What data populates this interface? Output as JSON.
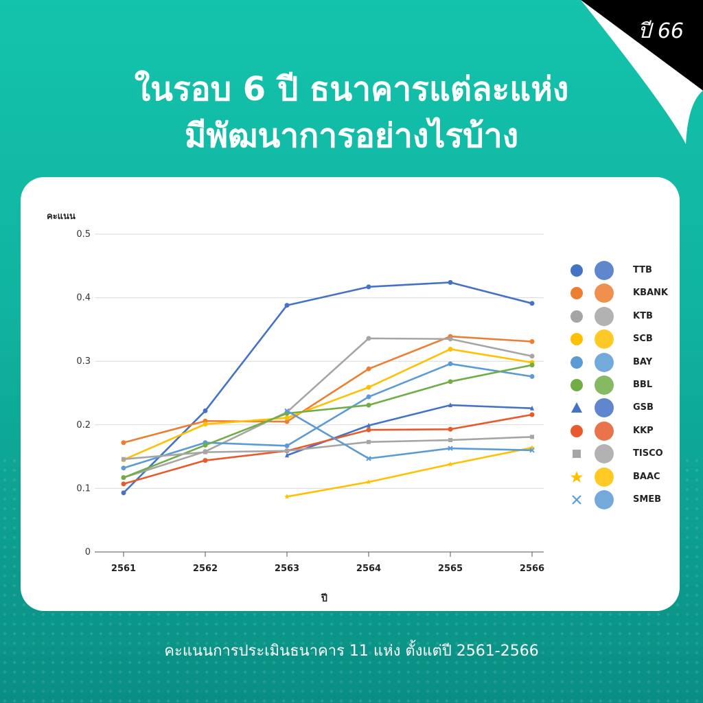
{
  "header": {
    "year_badge": "ปี 66",
    "title_line1": "ในรอบ 6 ปี ธนาคารแต่ละแห่ง",
    "title_line2": "มีพัฒนาการอย่างไรบ้าง"
  },
  "caption": "คะแนนการประเมินธนาคาร 11 แห่ง ตั้งแต่ปี 2561-2566",
  "colors": {
    "background": "#12bfa8",
    "card": "#ffffff",
    "corner": "#000000"
  },
  "chart_data": {
    "type": "line",
    "title": "",
    "xlabel": "ปี",
    "ylabel": "คะแนน",
    "x": [
      "2561",
      "2562",
      "2563",
      "2564",
      "2565",
      "2566"
    ],
    "ylim": [
      0,
      0.5
    ],
    "yticks": [
      "0",
      "0.1",
      "0.2",
      "0.3",
      "0.4",
      "0.5"
    ],
    "grid": true,
    "legend_position": "right",
    "series": [
      {
        "name": "TTB",
        "color": "#4472c4",
        "marker": "circle",
        "logo": "ttb-logo",
        "values": [
          0.093,
          0.222,
          0.388,
          0.417,
          0.424,
          0.391
        ]
      },
      {
        "name": "KBANK",
        "color": "#ed7d31",
        "marker": "circle",
        "logo": "kbank-logo",
        "values": [
          0.172,
          0.206,
          0.205,
          0.288,
          0.339,
          0.331
        ]
      },
      {
        "name": "KTB",
        "color": "#a5a5a5",
        "marker": "circle",
        "logo": "ktb-logo",
        "values": [
          0.117,
          0.158,
          0.22,
          0.336,
          0.335,
          0.308
        ]
      },
      {
        "name": "SCB",
        "color": "#ffc000",
        "marker": "circle",
        "logo": "scb-logo",
        "values": [
          0.145,
          0.201,
          0.211,
          0.259,
          0.319,
          0.298
        ]
      },
      {
        "name": "BAY",
        "color": "#5b9bd5",
        "marker": "circle",
        "logo": "bay-logo",
        "values": [
          0.132,
          0.172,
          0.167,
          0.244,
          0.296,
          0.276
        ]
      },
      {
        "name": "BBL",
        "color": "#70ad47",
        "marker": "circle",
        "logo": "bbl-logo",
        "values": [
          0.117,
          0.168,
          0.218,
          0.231,
          0.268,
          0.294
        ]
      },
      {
        "name": "GSB",
        "color": "#4472c4",
        "marker": "triangle",
        "logo": "gsb-logo",
        "values": [
          null,
          null,
          0.152,
          0.199,
          0.231,
          0.226
        ]
      },
      {
        "name": "KKP",
        "color": "#e85a2b",
        "marker": "circle",
        "logo": "kkp-logo",
        "values": [
          0.107,
          0.144,
          0.159,
          0.192,
          0.193,
          0.216
        ]
      },
      {
        "name": "TISCO",
        "color": "#a5a5a5",
        "marker": "square",
        "logo": "tisco-logo",
        "values": [
          0.146,
          0.157,
          0.159,
          0.173,
          0.176,
          0.181
        ]
      },
      {
        "name": "BAAC",
        "color": "#ffc000",
        "marker": "star",
        "logo": "baac-logo",
        "values": [
          null,
          null,
          0.087,
          0.11,
          0.138,
          0.164
        ]
      },
      {
        "name": "SMEB",
        "color": "#5b9bd5",
        "marker": "x",
        "logo": "smeb-logo",
        "values": [
          null,
          null,
          0.222,
          0.147,
          0.163,
          0.16
        ]
      }
    ]
  }
}
